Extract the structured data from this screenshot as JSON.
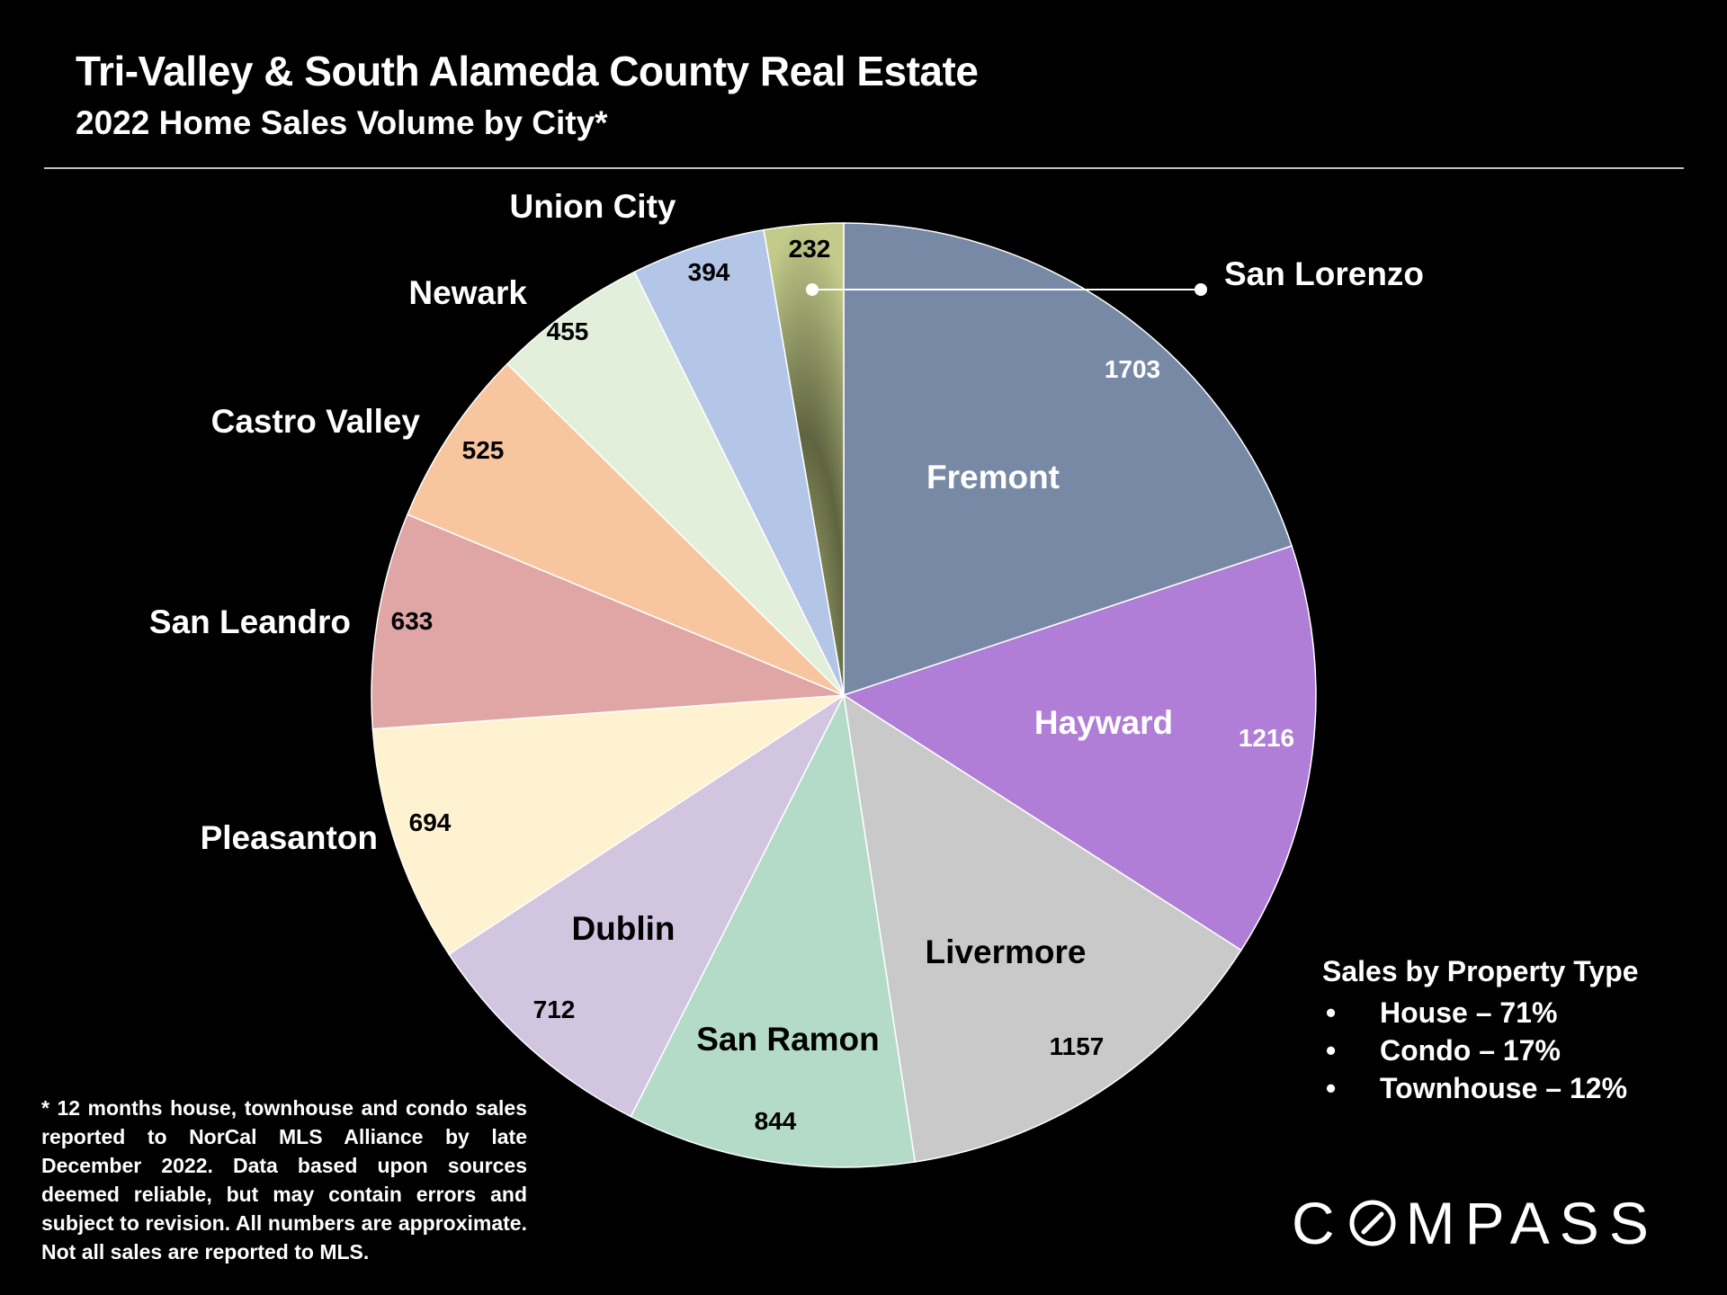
{
  "header": {
    "title": "Tri-Valley & South Alameda County Real Estate",
    "subtitle": "2022 Home Sales Volume by City*"
  },
  "chart_data": {
    "type": "pie",
    "title": "2022 Home Sales Volume by City*",
    "start_angle_deg": 0,
    "direction": "clockwise",
    "slices": [
      {
        "label": "Fremont",
        "value": 1703,
        "color": "#7889a5"
      },
      {
        "label": "Hayward",
        "value": 1216,
        "color": "#b07dd7"
      },
      {
        "label": "Livermore",
        "value": 1157,
        "color": "#c9c9c9"
      },
      {
        "label": "San Ramon",
        "value": 844,
        "color": "#b3dbc8"
      },
      {
        "label": "Dublin",
        "value": 712,
        "color": "#d2c5e0"
      },
      {
        "label": "Pleasanton",
        "value": 694,
        "color": "#fff2d1"
      },
      {
        "label": "San Leandro",
        "value": 633,
        "color": "#e0a6a6"
      },
      {
        "label": "Castro Valley",
        "value": 525,
        "color": "#f8c69e"
      },
      {
        "label": "Newark",
        "value": 455,
        "color": "#e2efda"
      },
      {
        "label": "Union City",
        "value": 394,
        "color": "#b4c6e7"
      },
      {
        "label": "San Lorenzo",
        "value": 232,
        "color": "#b3bb7a"
      }
    ]
  },
  "legend": {
    "heading": "Sales by Property Type",
    "bullet": "•",
    "items": [
      {
        "label": "House – 71%"
      },
      {
        "label": "Condo – 17%"
      },
      {
        "label": "Townhouse – 12%"
      }
    ]
  },
  "footnote": "* 12 months house, townhouse and condo sales reported to NorCal MLS Alliance by late December 2022. Data based upon sources deemed reliable, but may contain errors and subject to revision. All numbers are approximate. Not all sales are reported to MLS.",
  "logo": {
    "text_before": "C",
    "text_after": "MPASS",
    "icon": "compass-o-icon"
  }
}
